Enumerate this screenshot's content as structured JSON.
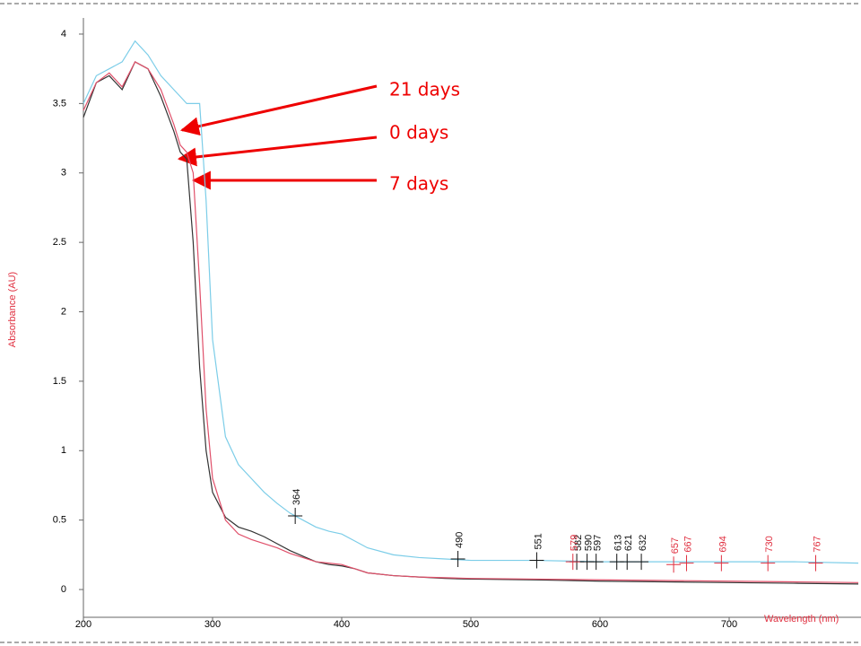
{
  "chart_data": {
    "type": "line",
    "xlabel": "Wavelength (nm)",
    "ylabel": "Absorbance (AU)",
    "x": [
      200,
      210,
      220,
      230,
      240,
      250,
      260,
      270,
      275,
      280,
      285,
      290,
      295,
      300,
      310,
      320,
      330,
      340,
      350,
      360,
      370,
      380,
      390,
      400,
      410,
      420,
      440,
      460,
      480,
      500,
      550,
      600,
      650,
      700,
      750,
      800
    ],
    "series": [
      {
        "name": "0 days",
        "color": "#333333",
        "values": [
          3.4,
          3.65,
          3.7,
          3.6,
          3.8,
          3.75,
          3.55,
          3.3,
          3.15,
          3.1,
          2.5,
          1.6,
          1.0,
          0.7,
          0.52,
          0.45,
          0.42,
          0.38,
          0.33,
          0.28,
          0.24,
          0.2,
          0.18,
          0.17,
          0.15,
          0.12,
          0.1,
          0.09,
          0.08,
          0.075,
          0.07,
          0.06,
          0.055,
          0.05,
          0.045,
          0.04
        ]
      },
      {
        "name": "7 days",
        "color": "#e0506a",
        "values": [
          3.45,
          3.65,
          3.72,
          3.62,
          3.8,
          3.75,
          3.6,
          3.35,
          3.2,
          3.15,
          3.0,
          2.2,
          1.3,
          0.8,
          0.5,
          0.4,
          0.36,
          0.33,
          0.3,
          0.26,
          0.23,
          0.2,
          0.19,
          0.18,
          0.15,
          0.12,
          0.1,
          0.09,
          0.085,
          0.08,
          0.075,
          0.07,
          0.065,
          0.06,
          0.055,
          0.05
        ]
      },
      {
        "name": "21 days",
        "color": "#7ccde8",
        "values": [
          3.5,
          3.7,
          3.75,
          3.8,
          3.95,
          3.85,
          3.7,
          3.6,
          3.55,
          3.5,
          3.5,
          3.5,
          2.8,
          1.8,
          1.1,
          0.9,
          0.8,
          0.7,
          0.62,
          0.55,
          0.5,
          0.45,
          0.42,
          0.4,
          0.35,
          0.3,
          0.25,
          0.23,
          0.22,
          0.21,
          0.21,
          0.2,
          0.2,
          0.2,
          0.2,
          0.19
        ]
      }
    ],
    "peak_markers": [
      {
        "color": "#111111",
        "x": [
          364,
          490,
          551,
          582,
          590,
          597,
          613,
          621,
          632
        ],
        "y": [
          0.53,
          0.22,
          0.21,
          0.2,
          0.2,
          0.2,
          0.2,
          0.2,
          0.2
        ]
      },
      {
        "color": "#e03040",
        "x": [
          579,
          657,
          667,
          694,
          730,
          767
        ],
        "y": [
          0.2,
          0.18,
          0.19,
          0.19,
          0.19,
          0.19
        ]
      }
    ],
    "xlim": [
      200,
      800
    ],
    "ylim": [
      -0.2,
      4.1
    ],
    "xticks": [
      200,
      300,
      400,
      500,
      600,
      700
    ],
    "yticks": [
      0,
      0.5,
      1,
      1.5,
      2,
      2.5,
      3,
      3.5,
      4
    ]
  }
}
